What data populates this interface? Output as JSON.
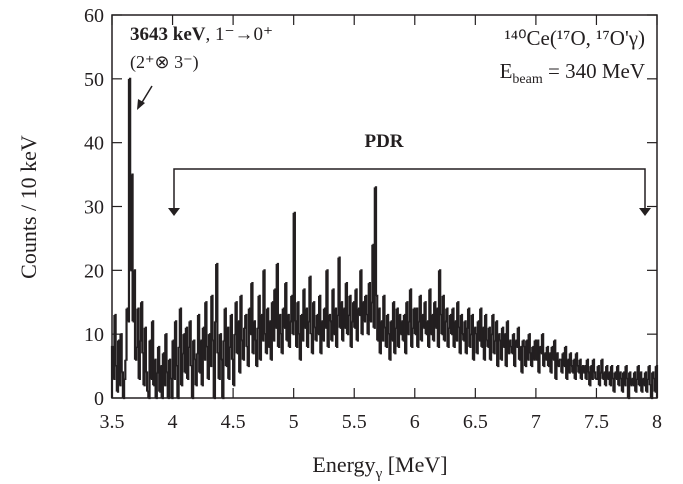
{
  "chart_data": {
    "type": "histogram",
    "y_label": "Counts / 10 keV",
    "x_label": {
      "text": "Energy",
      "subscript": "γ",
      "unit": " [MeV]"
    },
    "annotations": {
      "peak_energy": "3643 keV",
      "peak_transition": ", 1⁻→0⁺",
      "peak_config": "(2⁺⊗ 3⁻)",
      "reaction": "¹⁴⁰Ce(¹⁷O, ¹⁷O'γ)",
      "beam_symbol": "E",
      "beam_subscript": "beam",
      "beam_value": " = 340 MeV",
      "region": "PDR"
    },
    "color": "#231f20",
    "xlim": [
      3.5,
      8
    ],
    "ylim": [
      0,
      60
    ],
    "xticks": [
      3.5,
      4,
      4.5,
      5,
      5.5,
      6,
      6.5,
      7,
      7.5,
      8
    ],
    "yticks": [
      0,
      10,
      20,
      30,
      40,
      50,
      60
    ],
    "bins": [
      3.5,
      3.51,
      3.52,
      3.53,
      3.54,
      3.55,
      3.56,
      3.57,
      3.58,
      3.59,
      3.6,
      3.61,
      3.62,
      3.63,
      3.64,
      3.65,
      3.66,
      3.67,
      3.68,
      3.69,
      3.7,
      3.71,
      3.72,
      3.73,
      3.74,
      3.75,
      3.76,
      3.77,
      3.78,
      3.79,
      3.8,
      3.81,
      3.82,
      3.83,
      3.84,
      3.85,
      3.86,
      3.87,
      3.88,
      3.89,
      3.9,
      3.91,
      3.92,
      3.93,
      3.94,
      3.95,
      3.96,
      3.97,
      3.98,
      3.99,
      4,
      4.01,
      4.02,
      4.03,
      4.04,
      4.05,
      4.06,
      4.07,
      4.08,
      4.09,
      4.1,
      4.11,
      4.12,
      4.13,
      4.14,
      4.15,
      4.16,
      4.17,
      4.18,
      4.19,
      4.2,
      4.21,
      4.22,
      4.23,
      4.24,
      4.25,
      4.26,
      4.27,
      4.28,
      4.29,
      4.3,
      4.31,
      4.32,
      4.33,
      4.34,
      4.35,
      4.36,
      4.37,
      4.38,
      4.39,
      4.4,
      4.41,
      4.42,
      4.43,
      4.44,
      4.45,
      4.46,
      4.47,
      4.48,
      4.49,
      4.5,
      4.51,
      4.52,
      4.53,
      4.54,
      4.55,
      4.56,
      4.57,
      4.58,
      4.59,
      4.6,
      4.61,
      4.62,
      4.63,
      4.64,
      4.65,
      4.66,
      4.67,
      4.68,
      4.69,
      4.7,
      4.71,
      4.72,
      4.73,
      4.74,
      4.75,
      4.76,
      4.77,
      4.78,
      4.79,
      4.8,
      4.81,
      4.82,
      4.83,
      4.84,
      4.85,
      4.86,
      4.87,
      4.88,
      4.89,
      4.9,
      4.91,
      4.92,
      4.93,
      4.94,
      4.95,
      4.96,
      4.97,
      4.98,
      4.99,
      5,
      5.01,
      5.02,
      5.03,
      5.04,
      5.05,
      5.06,
      5.07,
      5.08,
      5.09,
      5.1,
      5.11,
      5.12,
      5.13,
      5.14,
      5.15,
      5.16,
      5.17,
      5.18,
      5.19,
      5.2,
      5.21,
      5.22,
      5.23,
      5.24,
      5.25,
      5.26,
      5.27,
      5.28,
      5.29,
      5.3,
      5.31,
      5.32,
      5.33,
      5.34,
      5.35,
      5.36,
      5.37,
      5.38,
      5.39,
      5.4,
      5.41,
      5.42,
      5.43,
      5.44,
      5.45,
      5.46,
      5.47,
      5.48,
      5.49,
      5.5,
      5.51,
      5.52,
      5.53,
      5.54,
      5.55,
      5.56,
      5.57,
      5.58,
      5.59,
      5.6,
      5.61,
      5.62,
      5.63,
      5.64,
      5.65,
      5.66,
      5.67,
      5.68,
      5.69,
      5.7,
      5.71,
      5.72,
      5.73,
      5.74,
      5.75,
      5.76,
      5.77,
      5.78,
      5.79,
      5.8,
      5.81,
      5.82,
      5.83,
      5.84,
      5.85,
      5.86,
      5.87,
      5.88,
      5.89,
      5.9,
      5.91,
      5.92,
      5.93,
      5.94,
      5.95,
      5.96,
      5.97,
      5.98,
      5.99,
      6,
      6.01,
      6.02,
      6.03,
      6.04,
      6.05,
      6.06,
      6.07,
      6.08,
      6.09,
      6.1,
      6.11,
      6.12,
      6.13,
      6.14,
      6.15,
      6.16,
      6.17,
      6.18,
      6.19,
      6.2,
      6.21,
      6.22,
      6.23,
      6.24,
      6.25,
      6.26,
      6.27,
      6.28,
      6.29,
      6.3,
      6.31,
      6.32,
      6.33,
      6.34,
      6.35,
      6.36,
      6.37,
      6.38,
      6.39,
      6.4,
      6.41,
      6.42,
      6.43,
      6.44,
      6.45,
      6.46,
      6.47,
      6.48,
      6.49,
      6.5,
      6.51,
      6.52,
      6.53,
      6.54,
      6.55,
      6.56,
      6.57,
      6.58,
      6.59,
      6.6,
      6.61,
      6.62,
      6.63,
      6.64,
      6.65,
      6.66,
      6.67,
      6.68,
      6.69,
      6.7,
      6.71,
      6.72,
      6.73,
      6.74,
      6.75,
      6.76,
      6.77,
      6.78,
      6.79,
      6.8,
      6.81,
      6.82,
      6.83,
      6.84,
      6.85,
      6.86,
      6.87,
      6.88,
      6.89,
      6.9,
      6.91,
      6.92,
      6.93,
      6.94,
      6.95,
      6.96,
      6.97,
      6.98,
      6.99,
      7,
      7.01,
      7.02,
      7.03,
      7.04,
      7.05,
      7.06,
      7.07,
      7.08,
      7.09,
      7.1,
      7.11,
      7.12,
      7.13,
      7.14,
      7.15,
      7.16,
      7.17,
      7.18,
      7.19,
      7.2,
      7.21,
      7.22,
      7.23,
      7.24,
      7.25,
      7.26,
      7.27,
      7.28,
      7.29,
      7.3,
      7.31,
      7.32,
      7.33,
      7.34,
      7.35,
      7.36,
      7.37,
      7.38,
      7.39,
      7.4,
      7.41,
      7.42,
      7.43,
      7.44,
      7.45,
      7.46,
      7.47,
      7.48,
      7.49,
      7.5,
      7.51,
      7.52,
      7.53,
      7.54,
      7.55,
      7.56,
      7.57,
      7.58,
      7.59,
      7.6,
      7.61,
      7.62,
      7.63,
      7.64,
      7.65,
      7.66,
      7.67,
      7.68,
      7.69,
      7.7,
      7.71,
      7.72,
      7.73,
      7.74,
      7.75,
      7.76,
      7.77,
      7.78,
      7.79,
      7.8,
      7.81,
      7.82,
      7.83,
      7.84,
      7.85,
      7.86,
      7.87,
      7.88,
      7.89,
      7.9,
      7.91,
      7.92,
      7.93,
      7.94,
      7.95,
      7.96,
      7.97,
      7.98,
      7.99,
      8
    ],
    "values": [
      8,
      3,
      13,
      5,
      1,
      9,
      2,
      10,
      4,
      0,
      3,
      6,
      14,
      12,
      50,
      20,
      35,
      12,
      20,
      6,
      8,
      14,
      3,
      9,
      15,
      7,
      2,
      11,
      4,
      1,
      0,
      9,
      3,
      12,
      2,
      6,
      0,
      4,
      8,
      1,
      5,
      0,
      7,
      2,
      10,
      4,
      0,
      6,
      3,
      0,
      9,
      3,
      12,
      5,
      0,
      8,
      14,
      2,
      7,
      10,
      4,
      11,
      3,
      8,
      12,
      5,
      0,
      9,
      6,
      2,
      7,
      13,
      4,
      9,
      2,
      11,
      6,
      15,
      8,
      3,
      10,
      5,
      16,
      9,
      0,
      12,
      21,
      7,
      3,
      10,
      6,
      0,
      9,
      14,
      5,
      11,
      3,
      8,
      13,
      6,
      2,
      10,
      15,
      7,
      12,
      4,
      16,
      9,
      6,
      11,
      13,
      8,
      5,
      14,
      10,
      18,
      7,
      12,
      9,
      5,
      11,
      16,
      6,
      13,
      9,
      20,
      10,
      7,
      14,
      8,
      12,
      6,
      15,
      9,
      17,
      11,
      21,
      8,
      13,
      10,
      7,
      14,
      11,
      18,
      9,
      13,
      8,
      12,
      16,
      10,
      29,
      12,
      8,
      15,
      10,
      6,
      13,
      9,
      17,
      11,
      14,
      8,
      12,
      19,
      10,
      7,
      15,
      11,
      9,
      13,
      10,
      16,
      7,
      12,
      9,
      14,
      11,
      20,
      8,
      13,
      12,
      9,
      17,
      10,
      14,
      8,
      13,
      22,
      11,
      15,
      9,
      14,
      11,
      18,
      10,
      13,
      16,
      8,
      12,
      15,
      11,
      17,
      9,
      14,
      13,
      20,
      10,
      15,
      12,
      16,
      13,
      10,
      18,
      12,
      15,
      24,
      11,
      33,
      16,
      9,
      14,
      7,
      12,
      9,
      16,
      11,
      8,
      13,
      10,
      6,
      12,
      9,
      15,
      7,
      11,
      14,
      8,
      13,
      10,
      12,
      9,
      13,
      7,
      15,
      10,
      12,
      17,
      8,
      11,
      14,
      10,
      14,
      8,
      12,
      16,
      9,
      13,
      11,
      15,
      10,
      12,
      8,
      17,
      10,
      13,
      9,
      15,
      11,
      14,
      8,
      20,
      13,
      10,
      16,
      9,
      12,
      14,
      8,
      11,
      13,
      10,
      14,
      8,
      12,
      9,
      15,
      11,
      7,
      13,
      10,
      9,
      12,
      7,
      11,
      14,
      8,
      10,
      13,
      6,
      11,
      10,
      7,
      12,
      9,
      14,
      8,
      11,
      6,
      13,
      9,
      8,
      11,
      6,
      10,
      13,
      7,
      9,
      12,
      5,
      10,
      9,
      6,
      11,
      8,
      10,
      5,
      12,
      7,
      9,
      8,
      7,
      10,
      5,
      9,
      8,
      11,
      6,
      8,
      4,
      9,
      8,
      5,
      9,
      6,
      10,
      7,
      5,
      8,
      6,
      9,
      6,
      9,
      4,
      8,
      7,
      10,
      5,
      7,
      6,
      8,
      5,
      7,
      4,
      8,
      6,
      9,
      3,
      7,
      5,
      6,
      6,
      4,
      7,
      5,
      8,
      3,
      6,
      4,
      7,
      5,
      4,
      6,
      3,
      7,
      5,
      4,
      6,
      3,
      5,
      4,
      5,
      3,
      6,
      4,
      2,
      5,
      3,
      6,
      4,
      3,
      3,
      5,
      2,
      4,
      6,
      3,
      4,
      2,
      5,
      3,
      4,
      2,
      5,
      3,
      1,
      4,
      3,
      5,
      2,
      4,
      3,
      1,
      4,
      2,
      5,
      3,
      0,
      4,
      2,
      3,
      2,
      4,
      1,
      3,
      5,
      2,
      4,
      1,
      3,
      2,
      4,
      1,
      3,
      5,
      2,
      0,
      4,
      3,
      1,
      5
    ]
  }
}
